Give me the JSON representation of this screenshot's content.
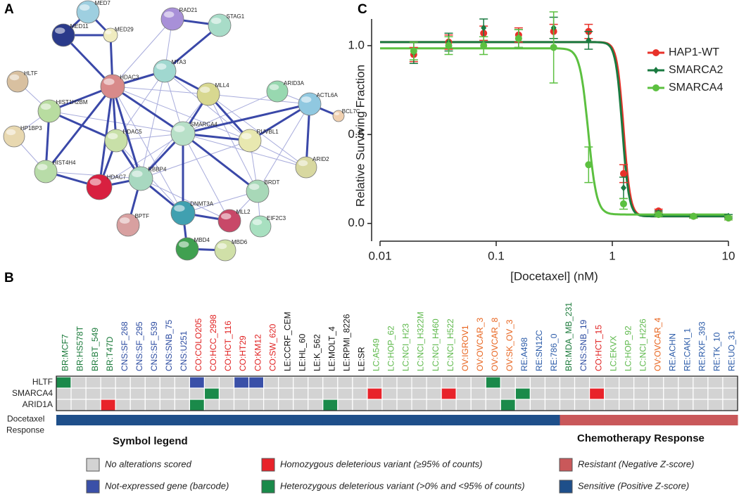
{
  "panel_labels": [
    "A",
    "B",
    "C"
  ],
  "network": {
    "nodes": [
      {
        "label": "MED7",
        "color": "#9ecfe0"
      },
      {
        "label": "MED11",
        "color": "#2a3a8a"
      },
      {
        "label": "MED29",
        "color": "#f0ecc0"
      },
      {
        "label": "RAD21",
        "color": "#a890d8"
      },
      {
        "label": "STAG1",
        "color": "#a8dcc8"
      },
      {
        "label": "HDAC3",
        "color": "#d88a8a"
      },
      {
        "label": "MTA3",
        "color": "#a0d8d0"
      },
      {
        "label": "HLTF",
        "color": "#d8c0a0"
      },
      {
        "label": "HIST1H2BM",
        "color": "#b8dca0"
      },
      {
        "label": "MLL4",
        "color": "#d8d890"
      },
      {
        "label": "ARID3A",
        "color": "#98d8b0"
      },
      {
        "label": "ACTL6A",
        "color": "#90c8e0"
      },
      {
        "label": "BCL7C",
        "color": "#f0d0b0"
      },
      {
        "label": "HP1BP3",
        "color": "#e8d8b0"
      },
      {
        "label": "HDAC5",
        "color": "#c8e0a8"
      },
      {
        "label": "SMARCA4",
        "color": "#b8e0c8"
      },
      {
        "label": "RUVBL1",
        "color": "#e8e8b0"
      },
      {
        "label": "ARID2",
        "color": "#d8d8a0"
      },
      {
        "label": "HIST4H4",
        "color": "#b8dca8"
      },
      {
        "label": "HDAC7",
        "color": "#d82040"
      },
      {
        "label": "RBBP4",
        "color": "#a8d8c0"
      },
      {
        "label": "BRDT",
        "color": "#a8d8b8"
      },
      {
        "label": "DNMT3A",
        "color": "#40a0b0"
      },
      {
        "label": "MLL2",
        "color": "#c84868"
      },
      {
        "label": "EIF2C3",
        "color": "#a8e0c0"
      },
      {
        "label": "BPTF",
        "color": "#d8a0a0"
      },
      {
        "label": "MBD4",
        "color": "#40a050"
      },
      {
        "label": "MBD6",
        "color": "#d0e0a8"
      }
    ]
  },
  "chart_data": {
    "type": "dose_response",
    "xlabel": "[Docetaxel] (nM)",
    "ylabel": "Relative Surviving Fraction",
    "log_x": true,
    "x": [
      0.0195,
      0.039,
      0.078,
      0.156,
      0.3125,
      0.625,
      1.25,
      2.5,
      5,
      10
    ],
    "xlim": [
      0.01,
      10
    ],
    "xticks": [
      0.01,
      0.1,
      1,
      10
    ],
    "ylim": [
      -0.1,
      1.15
    ],
    "yticks": [
      {
        "value": 0,
        "label": "0.0"
      },
      {
        "value": 0.5,
        "label": "0.5"
      },
      {
        "value": 1,
        "label": "1.0"
      }
    ],
    "legend": "upper right",
    "series": [
      {
        "name": "HAP1-WT",
        "color": "#e8322a",
        "marker": "circle",
        "values": [
          0.95,
          1.02,
          1.07,
          1.06,
          1.08,
          1.08,
          0.28,
          0.07,
          0.04,
          0.03
        ],
        "errors": [
          0.04,
          0.04,
          0.04,
          0.04,
          0.04,
          0.04,
          0.05,
          0.01,
          0.01,
          0.01
        ],
        "fit": {
          "top": 1.02,
          "bottom": 0.04,
          "ic50": 1.25,
          "hill": 15
        }
      },
      {
        "name": "SMARCA2",
        "color": "#1a7a40",
        "marker": "diamond",
        "values": [
          0.96,
          1.02,
          1.1,
          1.04,
          1.1,
          1.03,
          0.2,
          0.06,
          0.04,
          0.04
        ],
        "errors": [
          0.06,
          0.05,
          0.05,
          0.05,
          0.06,
          0.05,
          0.06,
          0.01,
          0.01,
          0.01
        ],
        "fit": {
          "top": 1.02,
          "bottom": 0.04,
          "ic50": 1.22,
          "hill": 15
        }
      },
      {
        "name": "SMARCA4",
        "color": "#5cc040",
        "marker": "circle",
        "values": [
          0.97,
          1.0,
          1.0,
          1.04,
          0.99,
          0.33,
          0.11,
          0.05,
          0.04,
          0.03
        ],
        "errors": [
          0.05,
          0.05,
          0.05,
          0.05,
          0.2,
          0.1,
          0.03,
          0.01,
          0.01,
          0.01
        ],
        "fit": {
          "top": 0.985,
          "bottom": 0.05,
          "ic50": 0.62,
          "hill": 12
        }
      }
    ]
  },
  "heatmap": {
    "columns": [
      "BR:MCF7",
      "BR:HS578T",
      "BR:BT_549",
      "BR:T47D",
      "CNS:SF_268",
      "CNS:SF_295",
      "CNS:SF_539",
      "CNS:SNB_75",
      "CNS:U251",
      "CO:COLO205",
      "CO:HCC_2998",
      "CO:HCT_116",
      "CO:HT29",
      "CO:KM12",
      "CO:SW_620",
      "LE:CCRF_CEM",
      "LE:HL_60",
      "LE:K_562",
      "LE:MOLT_4",
      "LE:RPMI_8226",
      "LE:SR",
      "LC:A549",
      "LC:HOP_62",
      "LC:NCI_H23",
      "LC:NCI_H322M",
      "LC:NCI_H460",
      "LC:NCI_H522",
      "OV:IGROV1",
      "OV:OVCAR_3",
      "OV:OVCAR_8",
      "OV:SK_OV_3",
      "RE:A498",
      "RE:SN12C",
      "RE:786_0",
      "BR:MDA_MB_231",
      "CNS:SNB_19",
      "CO:HCT_15",
      "LC:EKVX",
      "LC:HOP_92",
      "LC:NCI_H226",
      "OV:OVCAR_4",
      "RE:ACHN",
      "RE:CAKI_1",
      "RE:RXF_393",
      "RE:TK_10",
      "RE:UO_31"
    ],
    "label_colors": {
      "BR": "#1a7a3a",
      "CNS": "#2a4aa0",
      "CO": "#e02020",
      "LE": "#111111",
      "LC": "#5cb84a",
      "OV": "#e8641e",
      "RE": "#2a5aa8"
    },
    "rows": [
      {
        "name": "HLTF",
        "cells": [
          3,
          0,
          0,
          0,
          0,
          0,
          0,
          0,
          0,
          1,
          0,
          0,
          1,
          1,
          0,
          0,
          0,
          0,
          0,
          0,
          0,
          0,
          0,
          0,
          0,
          0,
          0,
          0,
          0,
          3,
          0,
          0,
          0,
          0,
          0,
          0,
          0,
          0,
          0,
          0,
          0,
          0,
          0,
          0,
          0,
          0
        ]
      },
      {
        "name": "SMARCA4",
        "cells": [
          0,
          0,
          0,
          0,
          0,
          0,
          0,
          0,
          0,
          0,
          3,
          0,
          0,
          0,
          0,
          0,
          0,
          0,
          0,
          0,
          0,
          2,
          0,
          0,
          0,
          0,
          2,
          0,
          0,
          0,
          0,
          3,
          0,
          0,
          0,
          0,
          2,
          0,
          0,
          0,
          0,
          0,
          0,
          0,
          0,
          0
        ]
      },
      {
        "name": "ARID1A",
        "cells": [
          0,
          0,
          0,
          2,
          0,
          0,
          0,
          0,
          0,
          3,
          0,
          0,
          0,
          0,
          0,
          0,
          0,
          0,
          3,
          0,
          0,
          0,
          0,
          0,
          0,
          0,
          0,
          0,
          0,
          0,
          3,
          0,
          0,
          0,
          0,
          0,
          0,
          0,
          0,
          0,
          0,
          0,
          0,
          0,
          0,
          0
        ]
      },
      {
        "name": "Docetaxel Response",
        "cells": [
          5,
          5,
          5,
          5,
          5,
          5,
          5,
          5,
          5,
          5,
          5,
          5,
          5,
          5,
          5,
          5,
          5,
          5,
          5,
          5,
          5,
          5,
          5,
          5,
          5,
          5,
          5,
          5,
          5,
          5,
          5,
          5,
          5,
          5,
          4,
          4,
          4,
          4,
          4,
          4,
          4,
          4,
          4,
          4,
          4,
          4
        ]
      }
    ],
    "legend_titles": [
      "Symbol legend",
      "Chemotherapy Response"
    ],
    "legend": [
      {
        "label": "No alterations scored",
        "color": "#d3d3d3"
      },
      {
        "label": "Not-expressed gene (barcode)",
        "color": "#3a50a8"
      },
      {
        "label": "Homozygous deleterious variant (≥95% of counts)",
        "color": "#e8232a"
      },
      {
        "label": "Heterozygous deleterious variant (>0% and <95% of counts)",
        "color": "#1a8a4a"
      },
      {
        "label": "Resistant (Negative Z-score)",
        "color": "#c9585a"
      },
      {
        "label": "Sensitive (Positive Z-score)",
        "color": "#1e4f8a"
      }
    ]
  }
}
